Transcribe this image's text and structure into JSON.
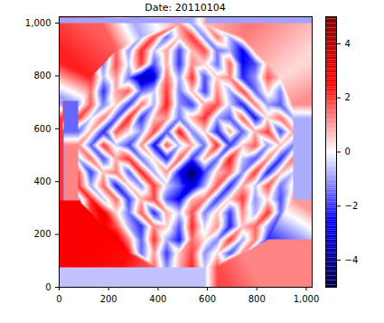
{
  "chart_data": {
    "type": "heatmap",
    "title": "Date: 20110104",
    "x": [
      25.6,
      76.8,
      128,
      179.2,
      230.4,
      281.6,
      332.8,
      384,
      435.2,
      486.4,
      537.6,
      588.8,
      640,
      691.2,
      742.4,
      793.6,
      844.8,
      896,
      947.2,
      998.4
    ],
    "y": [
      25.6,
      76.8,
      128,
      179.2,
      230.4,
      281.6,
      332.8,
      384,
      435.2,
      486.4,
      537.6,
      588.8,
      640,
      691.2,
      742.4,
      793.6,
      844.8,
      896,
      947.2,
      998.4
    ],
    "values": [
      [
        null,
        null,
        null,
        null,
        null,
        null,
        null,
        null,
        null,
        null,
        null,
        null,
        null,
        null,
        null,
        null,
        null,
        null,
        null,
        null
      ],
      [
        null,
        null,
        null,
        null,
        null,
        null,
        null,
        1.5,
        -1.2,
        0.8,
        2.2,
        -0.6,
        1.8,
        null,
        null,
        null,
        null,
        null,
        null,
        null
      ],
      [
        null,
        null,
        null,
        null,
        null,
        2.4,
        -1.5,
        1.0,
        -2.0,
        0.6,
        1.9,
        -1.1,
        0.4,
        -1.8,
        1.2,
        null,
        null,
        null,
        null,
        null
      ],
      [
        null,
        null,
        null,
        null,
        3.0,
        1.2,
        -1.6,
        2.1,
        -0.8,
        -2.4,
        1.5,
        0.3,
        -1.2,
        2.0,
        -0.9,
        1.4,
        -2.2,
        null,
        null,
        null
      ],
      [
        null,
        null,
        null,
        2.6,
        1.8,
        -0.7,
        -2.1,
        1.3,
        0.5,
        -1.7,
        2.2,
        -0.4,
        1.1,
        -2.3,
        0.7,
        1.6,
        -1.0,
        null,
        null,
        null
      ],
      [
        null,
        null,
        1.9,
        2.8,
        0.4,
        -1.4,
        1.7,
        -2.2,
        0.9,
        -0.5,
        1.8,
        -1.3,
        0.6,
        -2.0,
        1.2,
        -0.8,
        2.1,
        -1.5,
        null,
        null
      ],
      [
        null,
        -1.2,
        2.3,
        -0.6,
        1.5,
        -2.0,
        0.8,
        1.9,
        -1.6,
        -2.6,
        0.7,
        1.3,
        -1.9,
        0.5,
        2.0,
        -1.1,
        0.4,
        -1.8,
        1.0,
        null
      ],
      [
        null,
        2.1,
        -0.9,
        1.6,
        -2.3,
        0.6,
        -1.1,
        2.0,
        -0.4,
        -1.5,
        -3.2,
        -0.8,
        1.7,
        -2.1,
        0.9,
        -0.6,
        1.8,
        -1.4,
        0.3,
        null
      ],
      [
        null,
        1.8,
        -2.0,
        0.7,
        1.4,
        -1.6,
        2.2,
        -0.8,
        1.1,
        -2.4,
        -4.8,
        -1.9,
        0.6,
        1.5,
        -1.2,
        2.0,
        -2.2,
        0.8,
        -0.5,
        null
      ],
      [
        null,
        -0.7,
        1.5,
        -1.8,
        0.9,
        2.1,
        -1.3,
        0.4,
        -2.2,
        1.6,
        -2.0,
        0.8,
        -1.5,
        2.3,
        -0.6,
        -1.7,
        1.2,
        -2.1,
        1.4,
        null
      ],
      [
        null,
        1.2,
        -1.6,
        2.0,
        -0.5,
        -1.9,
        1.1,
        -2.5,
        1.8,
        -0.7,
        0.9,
        -1.4,
        2.1,
        -2.0,
        0.5,
        1.7,
        -1.1,
        0.6,
        -1.3,
        null
      ],
      [
        null,
        -1.5,
        0.8,
        -2.2,
        1.7,
        0.3,
        -1.0,
        1.9,
        -1.7,
        2.4,
        -1.2,
        0.5,
        -2.3,
        1.0,
        -1.6,
        0.8,
        2.0,
        -1.9,
        0.9,
        null
      ],
      [
        null,
        2.0,
        -0.4,
        1.3,
        -1.8,
        2.2,
        -2.1,
        0.6,
        1.1,
        -1.4,
        0.7,
        2.1,
        -0.9,
        -1.7,
        1.6,
        -2.4,
        0.4,
        1.5,
        -0.8,
        null
      ],
      [
        null,
        -0.9,
        1.7,
        -1.3,
        0.5,
        -2.0,
        1.4,
        -0.8,
        2.3,
        -1.1,
        -1.9,
        0.9,
        1.8,
        -0.5,
        -2.2,
        1.3,
        -1.0,
        -1.7,
        1.1,
        null
      ],
      [
        null,
        null,
        1.4,
        -2.1,
        0.9,
        1.6,
        -1.5,
        -0.6,
        2.0,
        -1.3,
        0.7,
        -2.0,
        1.2,
        -0.9,
        1.8,
        -1.6,
        0.5,
        -1.2,
        null,
        null
      ],
      [
        null,
        null,
        2.2,
        -0.7,
        1.1,
        -1.4,
        -3.6,
        -2.8,
        1.5,
        -0.9,
        2.1,
        -1.8,
        0.6,
        1.3,
        -2.2,
        -1.0,
        1.7,
        0.4,
        null,
        null
      ],
      [
        null,
        null,
        null,
        -1.3,
        1.8,
        -0.5,
        2.0,
        -1.7,
        0.9,
        -2.1,
        1.2,
        0.4,
        -1.5,
        1.6,
        -2.5,
        -1.8,
        0.8,
        null,
        null,
        null
      ],
      [
        null,
        null,
        null,
        null,
        1.6,
        -1.1,
        2.2,
        -0.6,
        1.0,
        -1.9,
        0.7,
        1.8,
        -1.4,
        -0.8,
        -2.6,
        1.1,
        null,
        null,
        null,
        null
      ],
      [
        null,
        null,
        null,
        null,
        null,
        null,
        -0.8,
        1.9,
        -1.5,
        0.6,
        2.0,
        -1.2,
        1.4,
        -0.7,
        1.3,
        null,
        null,
        null,
        null,
        null
      ],
      [
        null,
        null,
        null,
        null,
        null,
        null,
        null,
        null,
        null,
        1.0,
        -0.9,
        0.7,
        null,
        null,
        null,
        null,
        null,
        null,
        null,
        null
      ]
    ],
    "xlim": [
      0,
      1024
    ],
    "ylim": [
      0,
      1024
    ],
    "xticks": [
      0,
      200,
      400,
      600,
      800,
      1000
    ],
    "yticks": [
      0,
      200,
      400,
      600,
      800,
      1000
    ],
    "colorbar": {
      "range": [
        -5,
        5
      ],
      "ticks": [
        -4,
        -2,
        0,
        2,
        4
      ]
    }
  }
}
